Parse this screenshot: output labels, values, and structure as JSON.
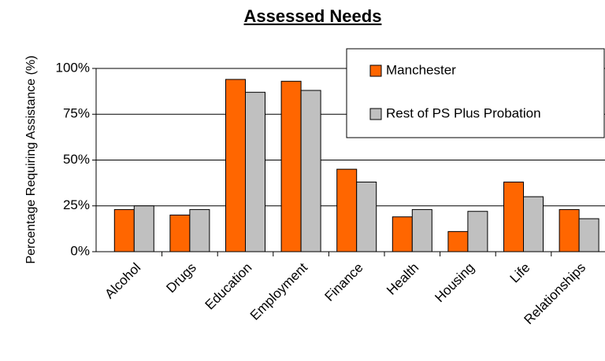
{
  "chart_data": {
    "type": "bar",
    "title": "Assessed Needs",
    "y_label": "Percentage Requiring Assistance (%)",
    "categories": [
      "Alcohol",
      "Drugs",
      "Education",
      "Employment",
      "Finance",
      "Health",
      "Housing",
      "Life",
      "Relationships"
    ],
    "series": [
      {
        "name": "Manchester",
        "color": "#ff6600",
        "values": [
          23,
          20,
          94,
          93,
          45,
          19,
          11,
          38,
          23
        ]
      },
      {
        "name": "Rest of PS Plus Probation",
        "color": "#c0c0c0",
        "values": [
          25,
          23,
          87,
          88,
          38,
          23,
          22,
          30,
          18
        ]
      }
    ],
    "ylim": [
      0,
      100
    ],
    "yticks": [
      {
        "value": 0,
        "label": "0%"
      },
      {
        "value": 25,
        "label": "25%"
      },
      {
        "value": 50,
        "label": "50%"
      },
      {
        "value": 75,
        "label": "75%"
      },
      {
        "value": 100,
        "label": "100%"
      }
    ],
    "grid": true,
    "legend": "upper right"
  }
}
